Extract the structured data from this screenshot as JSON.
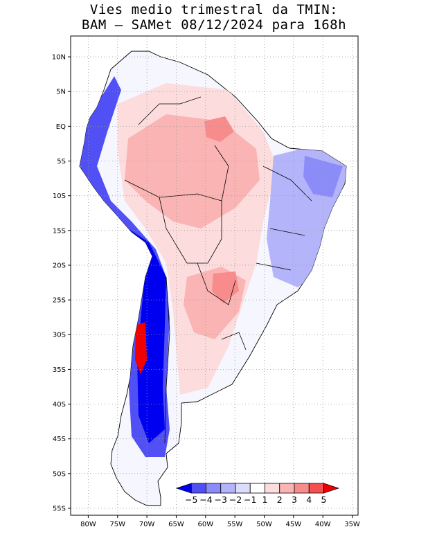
{
  "title": {
    "line1": "Vies medio trimestral da TMIN:",
    "line2": "BAM – SAMet 08/12/2024  para 168h"
  },
  "map": {
    "region": "South America",
    "projection": "lat-lon",
    "lon_range": [
      -83,
      -34
    ],
    "lat_range": [
      -56,
      13
    ],
    "grid": "dotted",
    "lat_ticks": [
      {
        "value": 10,
        "label": "10N"
      },
      {
        "value": 5,
        "label": "5N"
      },
      {
        "value": 0,
        "label": "EQ"
      },
      {
        "value": -5,
        "label": "5S"
      },
      {
        "value": -10,
        "label": "10S"
      },
      {
        "value": -15,
        "label": "15S"
      },
      {
        "value": -20,
        "label": "20S"
      },
      {
        "value": -25,
        "label": "25S"
      },
      {
        "value": -30,
        "label": "30S"
      },
      {
        "value": -35,
        "label": "35S"
      },
      {
        "value": -40,
        "label": "40S"
      },
      {
        "value": -45,
        "label": "45S"
      },
      {
        "value": -50,
        "label": "50S"
      },
      {
        "value": -55,
        "label": "55S"
      }
    ],
    "lon_ticks": [
      {
        "value": -80,
        "label": "80W"
      },
      {
        "value": -75,
        "label": "75W"
      },
      {
        "value": -70,
        "label": "70W"
      },
      {
        "value": -65,
        "label": "65W"
      },
      {
        "value": -60,
        "label": "60W"
      },
      {
        "value": -55,
        "label": "55W"
      },
      {
        "value": -50,
        "label": "50W"
      },
      {
        "value": -45,
        "label": "45W"
      },
      {
        "value": -40,
        "label": "40W"
      },
      {
        "value": -35,
        "label": "35W"
      }
    ]
  },
  "colorbar": {
    "placement": "bottom-right, inside map",
    "labels": [
      "−5",
      "−4",
      "−3",
      "−2",
      "−1",
      "1",
      "2",
      "3",
      "4",
      "5"
    ],
    "colors": [
      "#0000f0",
      "#5050f5",
      "#8c8cf8",
      "#b4b4fa",
      "#dcdcfc",
      "#ffffff",
      "#fcdcdc",
      "#fab4b4",
      "#f88c8c",
      "#f55050",
      "#f00000"
    ]
  },
  "legend_colors": {
    "strong_warm": "#f00000",
    "warm": "#f88c8c",
    "light_warm": "#fcdcdc",
    "neutral": "#ffffff",
    "light_cold": "#dcdcfc",
    "cold": "#8c8cf8",
    "strong_cold": "#0000f0"
  }
}
